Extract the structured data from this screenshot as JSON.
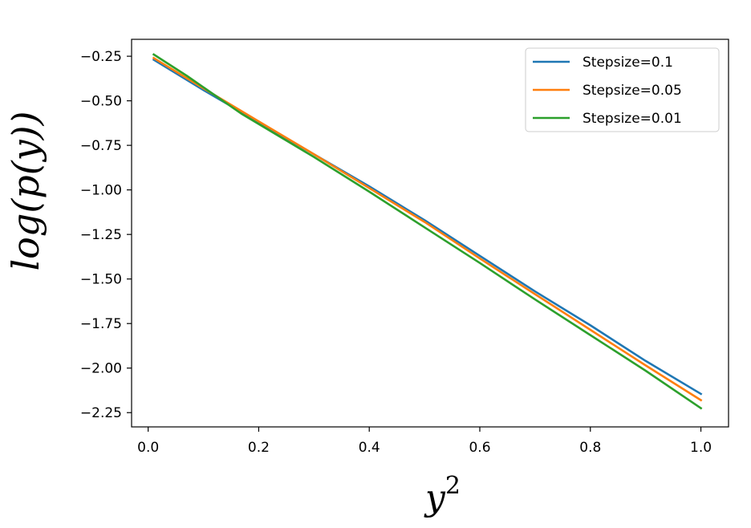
{
  "chart_data": {
    "type": "line",
    "xlabel_base": "y",
    "xlabel_sup": "2",
    "ylabel": "log(p(y))",
    "xlim": [
      -0.03,
      1.05
    ],
    "ylim": [
      -2.33,
      -0.155
    ],
    "xticks": [
      0.0,
      0.2,
      0.4,
      0.6,
      0.8,
      1.0
    ],
    "xtick_labels": [
      "0.0",
      "0.2",
      "0.4",
      "0.6",
      "0.8",
      "1.0"
    ],
    "yticks": [
      -0.25,
      -0.5,
      -0.75,
      -1.0,
      -1.25,
      -1.5,
      -1.75,
      -2.0,
      -2.25
    ],
    "ytick_labels": [
      "−0.25",
      "−0.50",
      "−0.75",
      "−1.00",
      "−1.25",
      "−1.50",
      "−1.75",
      "−2.00",
      "−2.25"
    ],
    "legend_position": "upper right",
    "grid": false,
    "series": [
      {
        "name": "Stepsize=0.1",
        "color": "#1f77b4",
        "x": [
          0.01,
          0.1,
          0.2,
          0.3,
          0.4,
          0.5,
          0.6,
          0.7,
          0.8,
          0.9,
          1.0
        ],
        "y": [
          -0.27,
          -0.44,
          -0.62,
          -0.8,
          -0.98,
          -1.17,
          -1.37,
          -1.57,
          -1.76,
          -1.96,
          -2.145
        ]
      },
      {
        "name": "Stepsize=0.05",
        "color": "#ff7f0e",
        "x": [
          0.01,
          0.1,
          0.2,
          0.3,
          0.4,
          0.5,
          0.6,
          0.7,
          0.8,
          0.9,
          1.0
        ],
        "y": [
          -0.26,
          -0.43,
          -0.615,
          -0.8,
          -0.99,
          -1.18,
          -1.385,
          -1.585,
          -1.785,
          -1.985,
          -2.18
        ]
      },
      {
        "name": "Stepsize=0.01",
        "color": "#2ca02c",
        "x": [
          0.01,
          0.07,
          0.17,
          0.3,
          0.4,
          0.5,
          0.6,
          0.7,
          0.8,
          0.9,
          1.0
        ],
        "y": [
          -0.24,
          -0.36,
          -0.575,
          -0.815,
          -1.01,
          -1.21,
          -1.41,
          -1.615,
          -1.815,
          -2.015,
          -2.225
        ]
      }
    ]
  }
}
